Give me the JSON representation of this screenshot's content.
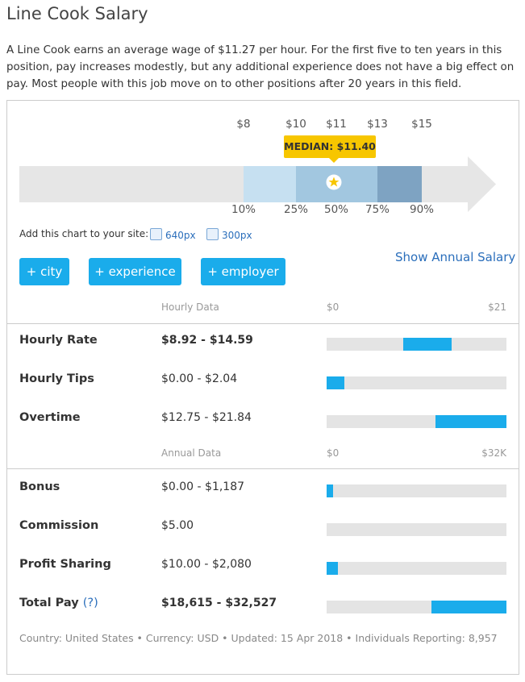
{
  "title": "Line Cook Salary",
  "description": "A Line Cook earns an average wage of $11.27 per hour. For the first five to ten years in this position, pay increases modestly, but any additional experience does not have a big effect on pay. Most people with this job move on to other positions after 20 years in this field.",
  "percentile_chart": {
    "wages": [
      {
        "value": 8,
        "label": "$8"
      },
      {
        "value": 10,
        "label": "$10"
      },
      {
        "value": 11,
        "label": "$11"
      },
      {
        "value": 13,
        "label": "$13"
      },
      {
        "value": 15,
        "label": "$15"
      }
    ],
    "percentiles": [
      {
        "value": 10,
        "label": "10%"
      },
      {
        "value": 25,
        "label": "25%"
      },
      {
        "value": 50,
        "label": "50%"
      },
      {
        "value": 75,
        "label": "75%"
      },
      {
        "value": 90,
        "label": "90%"
      }
    ],
    "median_title": "MEDIAN:",
    "median": {
      "value": 11.4,
      "label": "$11.40"
    }
  },
  "embed": {
    "text": "Add this chart to your site:",
    "links": [
      "640px",
      "300px"
    ]
  },
  "buttons": [
    "+ city",
    "+ experience",
    "+ employer"
  ],
  "annual_link": "Show Annual Salary",
  "sections": [
    {
      "title": "Hourly Data",
      "min": {
        "value": 0,
        "label": "$0"
      },
      "max": {
        "value": 21,
        "label": "$21"
      },
      "rows": [
        {
          "label": "Hourly Rate",
          "range": "$8.92 - $14.59",
          "low": 8.92,
          "high": 14.59,
          "bold": true
        },
        {
          "label": "Hourly Tips",
          "range": "$0.00 - $2.04",
          "low": 0,
          "high": 2.04
        },
        {
          "label": "Overtime",
          "range": "$12.75 - $21.84",
          "low": 12.75,
          "high": 21.84
        }
      ]
    },
    {
      "title": "Annual Data",
      "min": {
        "value": 0,
        "label": "$0"
      },
      "max": {
        "value": 32000,
        "label": "$32K"
      },
      "rows": [
        {
          "label": "Bonus",
          "range": "$0.00 - $1,187",
          "low": 0,
          "high": 1187
        },
        {
          "label": "Commission",
          "range": "$5.00",
          "low": 5,
          "high": 5
        },
        {
          "label": "Profit Sharing",
          "range": "$10.00 - $2,080",
          "low": 10,
          "high": 2080
        },
        {
          "label": "Total Pay",
          "help": "(?)",
          "range": "$18,615 - $32,527",
          "low": 18615,
          "high": 32527,
          "bold": true
        }
      ]
    }
  ],
  "footer": "Country: United States • Currency: USD • Updated: 15 Apr 2018 • Individuals Reporting: 8,957"
}
